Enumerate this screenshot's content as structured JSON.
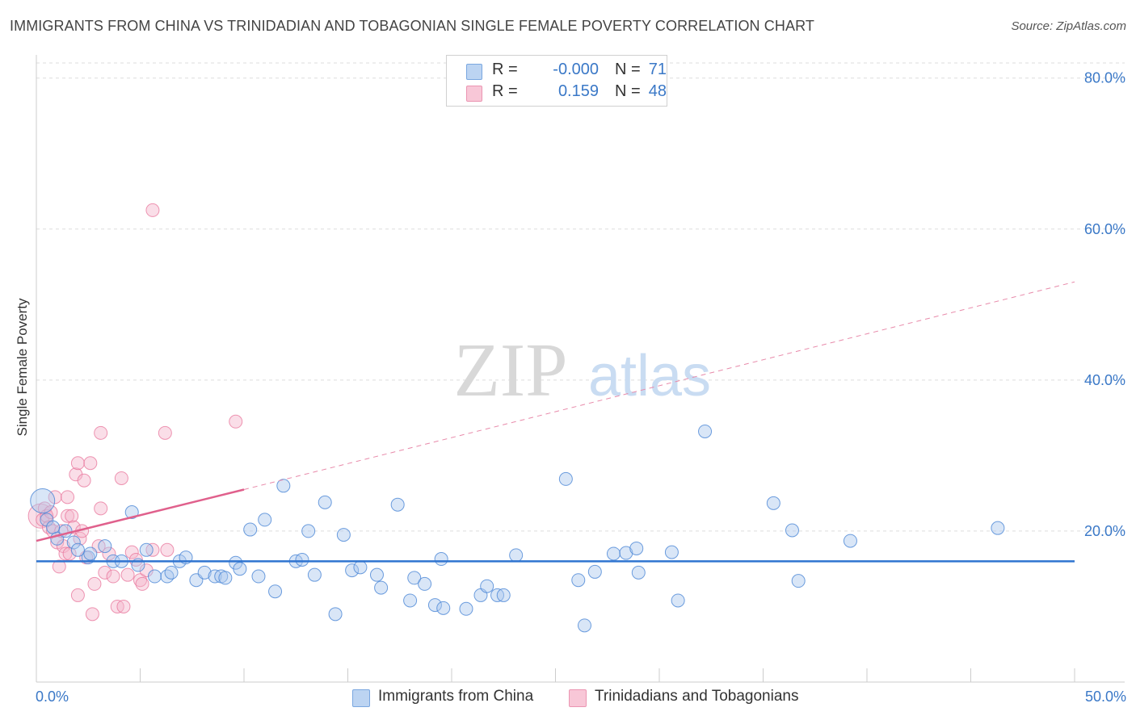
{
  "title": "IMMIGRANTS FROM CHINA VS TRINIDADIAN AND TOBAGONIAN SINGLE FEMALE POVERTY CORRELATION CHART",
  "source": "Source: ZipAtlas.com",
  "watermark": {
    "zip": "ZIP",
    "atlas": "atlas"
  },
  "colors": {
    "blue": "#4a86d6",
    "blue_fill": "#aac8ee",
    "pink": "#e8739a",
    "pink_fill": "#f5b5cb",
    "axis_text": "#3a78c7",
    "grid": "#dddddd"
  },
  "legend_top": [
    {
      "r_label": "R =",
      "r_value": "-0.000",
      "n_label": "N =",
      "n_value": "71"
    },
    {
      "r_label": "R =",
      "r_value": "0.159",
      "n_label": "N =",
      "n_value": "48"
    }
  ],
  "legend_bottom": [
    "Immigrants from China",
    "Trinidadians and Tobagonians"
  ],
  "chart_data": {
    "type": "scatter",
    "title": "IMMIGRANTS FROM CHINA VS TRINIDADIAN AND TOBAGONIAN SINGLE FEMALE POVERTY CORRELATION CHART",
    "xlabel": "",
    "ylabel": "Single Female Poverty",
    "xlim": [
      0,
      50
    ],
    "ylim": [
      0,
      82
    ],
    "x_tick_labels": [
      "0.0%",
      "50.0%"
    ],
    "y_ticks": [
      20,
      40,
      60,
      80
    ],
    "y_tick_labels": [
      "20.0%",
      "40.0%",
      "60.0%",
      "80.0%"
    ],
    "grid": true,
    "series": [
      {
        "name": "Immigrants from China",
        "color": "#4a86d6",
        "r": "-0.000",
        "n": "71",
        "points": [
          {
            "x": 0.3,
            "y": 24.0,
            "big": true
          },
          {
            "x": 0.5,
            "y": 21.5
          },
          {
            "x": 0.8,
            "y": 20.5
          },
          {
            "x": 1.0,
            "y": 19.0
          },
          {
            "x": 1.4,
            "y": 20.0
          },
          {
            "x": 1.8,
            "y": 18.5
          },
          {
            "x": 2.0,
            "y": 17.5
          },
          {
            "x": 2.5,
            "y": 16.5
          },
          {
            "x": 2.6,
            "y": 17.0
          },
          {
            "x": 3.3,
            "y": 18.0
          },
          {
            "x": 3.7,
            "y": 16.0
          },
          {
            "x": 4.1,
            "y": 16.0
          },
          {
            "x": 4.6,
            "y": 22.5
          },
          {
            "x": 4.9,
            "y": 15.5
          },
          {
            "x": 5.3,
            "y": 17.5
          },
          {
            "x": 5.7,
            "y": 14.0
          },
          {
            "x": 6.3,
            "y": 14.0
          },
          {
            "x": 6.5,
            "y": 14.5
          },
          {
            "x": 6.9,
            "y": 16.0
          },
          {
            "x": 7.2,
            "y": 16.5
          },
          {
            "x": 7.7,
            "y": 13.5
          },
          {
            "x": 8.1,
            "y": 14.5
          },
          {
            "x": 8.6,
            "y": 14.0
          },
          {
            "x": 8.9,
            "y": 14.0
          },
          {
            "x": 9.1,
            "y": 13.8
          },
          {
            "x": 9.6,
            "y": 15.8
          },
          {
            "x": 9.8,
            "y": 15.0
          },
          {
            "x": 10.3,
            "y": 20.2
          },
          {
            "x": 10.7,
            "y": 14.0
          },
          {
            "x": 11.0,
            "y": 21.5
          },
          {
            "x": 11.5,
            "y": 12.0
          },
          {
            "x": 11.9,
            "y": 26.0
          },
          {
            "x": 12.5,
            "y": 16.0
          },
          {
            "x": 12.8,
            "y": 16.2
          },
          {
            "x": 13.1,
            "y": 20.0
          },
          {
            "x": 13.4,
            "y": 14.2
          },
          {
            "x": 13.9,
            "y": 23.8
          },
          {
            "x": 14.4,
            "y": 9.0
          },
          {
            "x": 14.8,
            "y": 19.5
          },
          {
            "x": 15.2,
            "y": 14.8
          },
          {
            "x": 15.6,
            "y": 15.2
          },
          {
            "x": 16.4,
            "y": 14.2
          },
          {
            "x": 16.6,
            "y": 12.5
          },
          {
            "x": 17.4,
            "y": 23.5
          },
          {
            "x": 18.0,
            "y": 10.8
          },
          {
            "x": 18.2,
            "y": 13.8
          },
          {
            "x": 18.7,
            "y": 13.0
          },
          {
            "x": 19.2,
            "y": 10.2
          },
          {
            "x": 19.5,
            "y": 16.3
          },
          {
            "x": 19.6,
            "y": 9.8
          },
          {
            "x": 20.7,
            "y": 9.7
          },
          {
            "x": 21.4,
            "y": 11.5
          },
          {
            "x": 21.7,
            "y": 12.7
          },
          {
            "x": 22.2,
            "y": 11.5
          },
          {
            "x": 22.5,
            "y": 11.5
          },
          {
            "x": 23.1,
            "y": 16.8
          },
          {
            "x": 25.5,
            "y": 26.9
          },
          {
            "x": 26.1,
            "y": 13.5
          },
          {
            "x": 26.4,
            "y": 7.5
          },
          {
            "x": 26.9,
            "y": 14.6
          },
          {
            "x": 27.8,
            "y": 17.0
          },
          {
            "x": 28.4,
            "y": 17.1
          },
          {
            "x": 28.9,
            "y": 17.7
          },
          {
            "x": 29.0,
            "y": 14.5
          },
          {
            "x": 30.6,
            "y": 17.2
          },
          {
            "x": 30.9,
            "y": 10.8
          },
          {
            "x": 32.2,
            "y": 33.2
          },
          {
            "x": 35.5,
            "y": 23.7
          },
          {
            "x": 36.4,
            "y": 20.1
          },
          {
            "x": 36.7,
            "y": 13.4
          },
          {
            "x": 39.2,
            "y": 18.7
          },
          {
            "x": 46.3,
            "y": 20.4
          }
        ],
        "trend": {
          "x0": 0,
          "y0": 16.0,
          "x1": 50,
          "y1": 16.0
        }
      },
      {
        "name": "Trinidadians and Tobagonians",
        "color": "#e8739a",
        "r": "0.159",
        "n": "48",
        "points": [
          {
            "x": 0.2,
            "y": 22.0,
            "big": true
          },
          {
            "x": 0.3,
            "y": 21.5
          },
          {
            "x": 0.4,
            "y": 23.0
          },
          {
            "x": 0.5,
            "y": 22.0
          },
          {
            "x": 0.6,
            "y": 20.5
          },
          {
            "x": 0.8,
            "y": 20.0
          },
          {
            "x": 0.9,
            "y": 24.5
          },
          {
            "x": 1.0,
            "y": 18.5
          },
          {
            "x": 1.1,
            "y": 15.3
          },
          {
            "x": 1.2,
            "y": 20.0
          },
          {
            "x": 1.3,
            "y": 18.0
          },
          {
            "x": 1.4,
            "y": 17.0
          },
          {
            "x": 1.5,
            "y": 22.0
          },
          {
            "x": 1.5,
            "y": 24.5
          },
          {
            "x": 1.6,
            "y": 17.0
          },
          {
            "x": 1.7,
            "y": 22.0
          },
          {
            "x": 1.8,
            "y": 20.5
          },
          {
            "x": 1.9,
            "y": 27.5
          },
          {
            "x": 2.0,
            "y": 11.5
          },
          {
            "x": 2.0,
            "y": 29.0
          },
          {
            "x": 2.1,
            "y": 19.0
          },
          {
            "x": 2.2,
            "y": 20.0
          },
          {
            "x": 2.3,
            "y": 26.7
          },
          {
            "x": 2.4,
            "y": 16.5
          },
          {
            "x": 2.6,
            "y": 29.0
          },
          {
            "x": 2.7,
            "y": 9.0
          },
          {
            "x": 2.8,
            "y": 13.0
          },
          {
            "x": 3.0,
            "y": 18.0
          },
          {
            "x": 3.1,
            "y": 33.0
          },
          {
            "x": 3.1,
            "y": 23.0
          },
          {
            "x": 3.3,
            "y": 14.5
          },
          {
            "x": 3.5,
            "y": 17.0
          },
          {
            "x": 3.7,
            "y": 14.0
          },
          {
            "x": 3.9,
            "y": 10.0
          },
          {
            "x": 4.1,
            "y": 27.0
          },
          {
            "x": 4.2,
            "y": 10.0
          },
          {
            "x": 4.4,
            "y": 14.2
          },
          {
            "x": 4.6,
            "y": 17.2
          },
          {
            "x": 4.8,
            "y": 16.2
          },
          {
            "x": 5.0,
            "y": 13.5
          },
          {
            "x": 5.1,
            "y": 13.0
          },
          {
            "x": 5.3,
            "y": 14.8
          },
          {
            "x": 5.6,
            "y": 17.5
          },
          {
            "x": 5.6,
            "y": 62.5
          },
          {
            "x": 6.2,
            "y": 33.0
          },
          {
            "x": 6.3,
            "y": 17.5
          },
          {
            "x": 9.6,
            "y": 34.5
          },
          {
            "x": 0.7,
            "y": 22.5
          }
        ],
        "trend_solid": {
          "x0": 0,
          "y0": 18.7,
          "x1": 10,
          "y1": 25.5
        },
        "trend_dashed": {
          "x0": 10,
          "y0": 25.5,
          "x1": 50,
          "y1": 53.0
        }
      }
    ]
  }
}
